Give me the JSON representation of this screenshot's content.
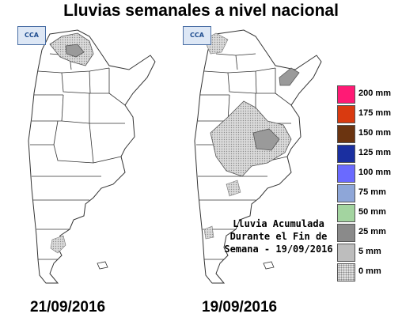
{
  "title": "Lluvias semanales a nivel nacional",
  "logo_text": "CCA",
  "maps": [
    {
      "date": "21/09/2016"
    },
    {
      "date": "19/09/2016"
    }
  ],
  "caption": {
    "line1": "Lluvia Acumulada",
    "line2": "Durante el Fin de",
    "line3": "Semana - 19/09/2016"
  },
  "legend": [
    {
      "label": "200 mm",
      "color": "#ff1a75"
    },
    {
      "label": "175 mm",
      "color": "#d93a10"
    },
    {
      "label": "150 mm",
      "color": "#6b3410"
    },
    {
      "label": "125 mm",
      "color": "#1a2fa0"
    },
    {
      "label": "100 mm",
      "color": "#6a6aff"
    },
    {
      "label": "75 mm",
      "color": "#8ea6d8"
    },
    {
      "label": "50 mm",
      "color": "#a3d4a0"
    },
    {
      "label": "25 mm",
      "color": "#8a8a8a"
    },
    {
      "label": "5 mm",
      "color": "#bdbdbd"
    },
    {
      "label": "0 mm",
      "color": "dotted"
    }
  ]
}
